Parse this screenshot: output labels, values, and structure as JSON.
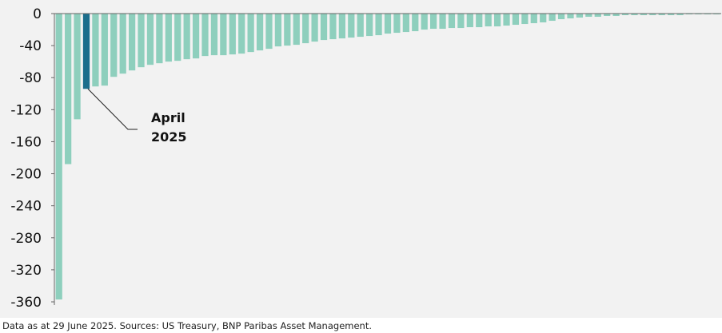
{
  "chart_data": {
    "type": "bar",
    "title": "",
    "xlabel": "",
    "ylabel": "",
    "ylim": [
      -364,
      0
    ],
    "yticks": [
      0,
      -40,
      -80,
      -120,
      -160,
      -200,
      -240,
      -280,
      -320,
      -360
    ],
    "grid": false,
    "legend": "none",
    "highlight_index": 3,
    "values": [
      -357,
      -188,
      -132,
      -94,
      -91,
      -90,
      -79,
      -75,
      -71,
      -67,
      -64,
      -62,
      -60,
      -59,
      -57,
      -56,
      -53,
      -52,
      -52,
      -51,
      -50,
      -48,
      -46,
      -44,
      -41,
      -40,
      -39,
      -37,
      -35,
      -33,
      -32,
      -31,
      -30,
      -29,
      -28,
      -27,
      -25,
      -24,
      -23,
      -22,
      -20,
      -19,
      -19,
      -18,
      -18,
      -17,
      -17,
      -16,
      -16,
      -15,
      -14,
      -13,
      -12,
      -11,
      -9,
      -7,
      -6,
      -5,
      -4,
      -4,
      -3,
      -3,
      -2,
      -2,
      -2,
      -2,
      -2,
      -2,
      -2,
      -1,
      -1,
      -1,
      -1
    ],
    "annotations": [
      {
        "line1": "April",
        "line2": "2025",
        "target_index": 3
      }
    ]
  },
  "colors": {
    "bar": "#8ecfbd",
    "highlight": "#1b6e8c",
    "axis": "#666666",
    "background": "#f2f2f2"
  },
  "footer": {
    "note": "Data as at 29 June 2025.  Sources: US Treasury, BNP Paribas Asset Management."
  }
}
